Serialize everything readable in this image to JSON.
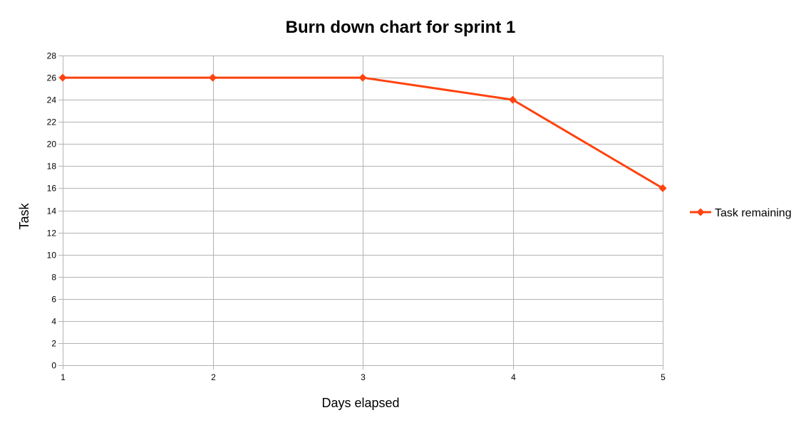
{
  "chart_data": {
    "type": "line",
    "title": "Burn down chart for sprint 1",
    "xlabel": "Days elapsed",
    "ylabel": "Task",
    "x": [
      1,
      2,
      3,
      4,
      5
    ],
    "x_tick_labels": [
      "1",
      "2",
      "3",
      "4",
      "5"
    ],
    "y_tick_labels": [
      "0",
      "2",
      "4",
      "6",
      "8",
      "10",
      "12",
      "14",
      "16",
      "18",
      "20",
      "22",
      "24",
      "26",
      "28"
    ],
    "ylim": [
      0,
      28
    ],
    "xlim": [
      1,
      5
    ],
    "grid": true,
    "legend_position": "right",
    "series": [
      {
        "name": "Task remaining",
        "values": [
          26,
          26,
          26,
          24,
          16
        ],
        "color": "#ff420e",
        "marker": "diamond"
      }
    ]
  }
}
